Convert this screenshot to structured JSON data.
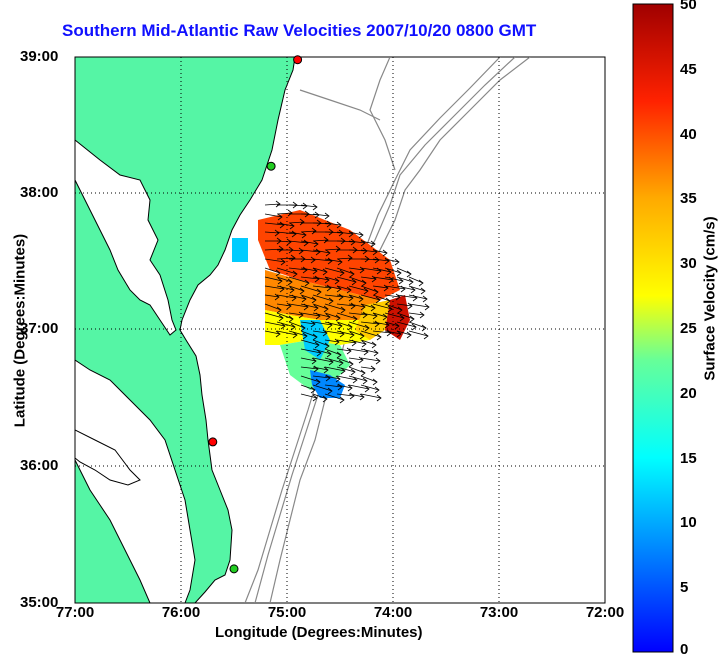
{
  "title": "Southern Mid-Atlantic Raw Velocities 2007/10/20 0800 GMT",
  "x_axis_title": "Longitude (Degrees:Minutes)",
  "y_axis_title": "Latitude (Degrees:Minutes)",
  "x_ticks": [
    "77:00",
    "76:00",
    "75:00",
    "74:00",
    "73:00",
    "72:00"
  ],
  "y_ticks": [
    "39:00",
    "38:00",
    "37:00",
    "36:00",
    "35:00"
  ],
  "colorbar": {
    "title": "Surface Velocity (cm/s)",
    "ticks": [
      "50",
      "45",
      "40",
      "35",
      "30",
      "25",
      "20",
      "15",
      "10",
      "5",
      "0"
    ],
    "range": [
      0,
      50
    ]
  },
  "colors": {
    "land": "#55f5a5",
    "coastline": "#000000",
    "bathymetry": "#888888",
    "title": "#1010ff",
    "station_red": "#ff0000",
    "station_green": "#22cc22"
  },
  "stations": [
    {
      "lon": -74.9,
      "lat": 38.98,
      "color": "red"
    },
    {
      "lon": -75.15,
      "lat": 38.2,
      "color": "green"
    },
    {
      "lon": -75.7,
      "lat": 36.18,
      "color": "red"
    },
    {
      "lon": -75.5,
      "lat": 35.25,
      "color": "green"
    }
  ]
}
